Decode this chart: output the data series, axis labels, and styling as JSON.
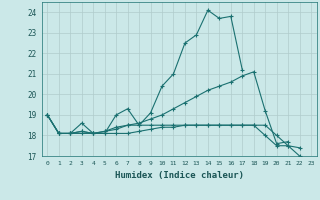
{
  "xlabel": "Humidex (Indice chaleur)",
  "ylabel": "",
  "background_color": "#cbe8e8",
  "grid_color": "#b0cccc",
  "line_color": "#1a7070",
  "xlim": [
    -0.5,
    23.5
  ],
  "ylim": [
    17,
    24.5
  ],
  "yticks": [
    17,
    18,
    19,
    20,
    21,
    22,
    23,
    24
  ],
  "xticks": [
    0,
    1,
    2,
    3,
    4,
    5,
    6,
    7,
    8,
    9,
    10,
    11,
    12,
    13,
    14,
    15,
    16,
    17,
    18,
    19,
    20,
    21,
    22,
    23
  ],
  "series": [
    {
      "x": [
        0,
        1,
        2,
        3,
        4,
        5,
        6,
        7,
        8,
        9,
        10,
        11,
        12,
        13,
        14,
        15,
        16,
        17
      ],
      "y": [
        19.0,
        18.1,
        18.1,
        18.6,
        18.1,
        18.1,
        19.0,
        19.3,
        18.5,
        19.1,
        20.4,
        21.0,
        22.5,
        22.9,
        24.1,
        23.7,
        23.8,
        21.2
      ]
    },
    {
      "x": [
        0,
        1,
        2,
        3,
        4,
        5,
        6,
        7,
        8,
        9,
        10,
        11,
        12,
        13,
        14,
        15,
        16,
        17,
        18,
        19,
        20,
        21
      ],
      "y": [
        19.0,
        18.1,
        18.1,
        18.2,
        18.1,
        18.2,
        18.3,
        18.5,
        18.6,
        18.8,
        19.0,
        19.3,
        19.6,
        19.9,
        20.2,
        20.4,
        20.6,
        20.9,
        21.1,
        19.2,
        17.6,
        17.7
      ]
    },
    {
      "x": [
        0,
        1,
        2,
        3,
        4,
        5,
        6,
        7,
        8,
        9,
        10,
        11,
        12,
        13,
        14,
        15,
        16,
        17,
        18,
        19,
        20,
        21,
        22
      ],
      "y": [
        19.0,
        18.1,
        18.1,
        18.2,
        18.1,
        18.2,
        18.4,
        18.5,
        18.5,
        18.5,
        18.5,
        18.5,
        18.5,
        18.5,
        18.5,
        18.5,
        18.5,
        18.5,
        18.5,
        18.5,
        18.0,
        17.5,
        17.4
      ]
    },
    {
      "x": [
        0,
        1,
        2,
        3,
        4,
        5,
        6,
        7,
        8,
        9,
        10,
        11,
        12,
        13,
        14,
        15,
        16,
        17,
        18,
        19,
        20,
        21,
        22
      ],
      "y": [
        19.0,
        18.1,
        18.1,
        18.1,
        18.1,
        18.1,
        18.1,
        18.1,
        18.2,
        18.3,
        18.4,
        18.4,
        18.5,
        18.5,
        18.5,
        18.5,
        18.5,
        18.5,
        18.5,
        18.0,
        17.5,
        17.5,
        17.0
      ]
    }
  ]
}
